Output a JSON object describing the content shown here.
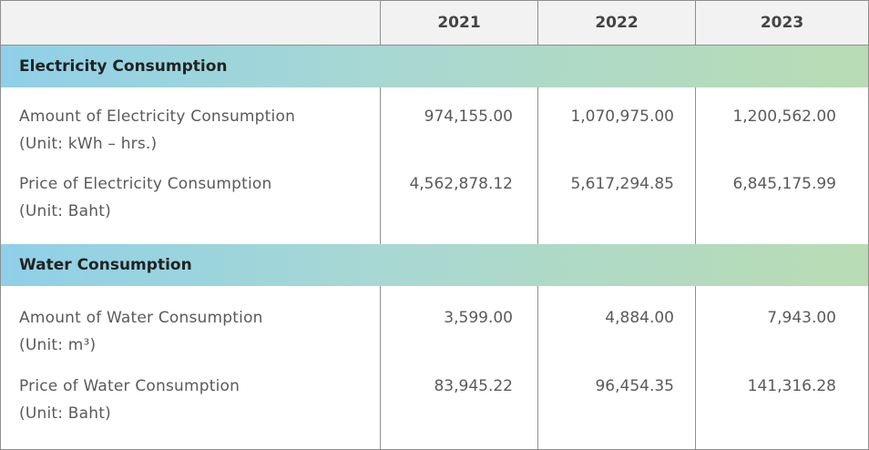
{
  "header": {
    "corner": "",
    "years": [
      "2021",
      "2022",
      "2023"
    ]
  },
  "sections": [
    {
      "title": "Electricity Consumption",
      "rows": [
        {
          "label_line1": "Amount of Electricity Consumption",
          "label_line2": "(Unit: kWh – hrs.)",
          "values": [
            "974,155.00",
            "1,070,975.00",
            "1,200,562.00"
          ]
        },
        {
          "label_line1": "Price of Electricity Consumption",
          "label_line2": "(Unit: Baht)",
          "values": [
            "4,562,878.12",
            "5,617,294.85",
            "6,845,175.99"
          ]
        }
      ]
    },
    {
      "title": "Water Consumption",
      "rows": [
        {
          "label_line1": "Amount of Water Consumption",
          "label_line2": "(Unit: m³)",
          "values": [
            "3,599.00",
            "4,884.00",
            "7,943.00"
          ]
        },
        {
          "label_line1": "Price of Water Consumption",
          "label_line2": "(Unit: Baht)",
          "values": [
            "83,945.22",
            "96,454.35",
            "141,316.28"
          ]
        }
      ]
    }
  ],
  "colors": {
    "header_bg": "#f2f2f2",
    "border": "#8f8f8f",
    "section_gradient_start": "#8fd0e8",
    "section_gradient_end": "#b9dcb3"
  }
}
